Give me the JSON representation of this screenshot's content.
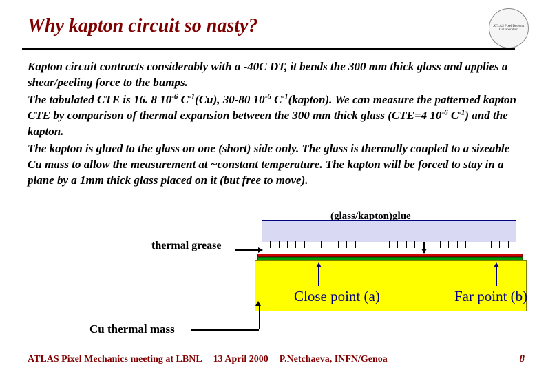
{
  "title": "Why kapton circuit so nasty?",
  "logo_text": "ATLAS Pixel Detector Collaboration",
  "paragraphs": {
    "p1a": "Kapton circuit contracts considerably with a -40C ",
    "p1_delta": "D",
    "p1b": "T, it bends the 300 ",
    "p1_mu1": "m",
    "p1c": "m thick glass and applies a shear/peeling force to the bumps.",
    "p2a": "The tabulated CTE is 16. 8 10",
    "p2_sup1": "-6",
    "p2b": " C",
    "p2_sup2": "-1",
    "p2c": "(Cu), 30-80 10",
    "p2_sup3": "-6",
    "p2d": " C",
    "p2_sup4": "-1",
    "p2e": "(kapton). We can measure the patterned kapton CTE by comparison of thermal expansion between the 300 ",
    "p2_mu": "m",
    "p2f": "m thick glass (CTE=4 10",
    "p2_sup5": "-6",
    "p2g": " C",
    "p2_sup6": "-1",
    "p2h": ") and the kapton.",
    "p3": "The kapton is glued to the glass on one (short) side only. The glass is thermally coupled to a sizeable Cu mass to allow the measurement at ~constant temperature. The kapton will be forced to stay in a plane by a 1mm thick glass placed on it (but free to move)."
  },
  "labels": {
    "glue": "(glass/kapton)glue",
    "grease": "thermal grease",
    "cu": "Cu thermal mass",
    "close": "Close point (a)",
    "far": "Far point (b)"
  },
  "diagram": {
    "colors": {
      "glass_fill": "#d9d9f3",
      "glass_border": "#000080",
      "red_layer": "#cc0000",
      "green_layer": "#009900",
      "yellow_fill": "#ffff00",
      "yellow_border": "#808000",
      "arrow_blue": "#000080"
    },
    "hatch_count": 30
  },
  "footer": {
    "meeting": "ATLAS Pixel Mechanics meeting at LBNL",
    "date": "13 April 2000",
    "author": "P.Netchaeva, INFN/Genoa",
    "page": "8"
  }
}
